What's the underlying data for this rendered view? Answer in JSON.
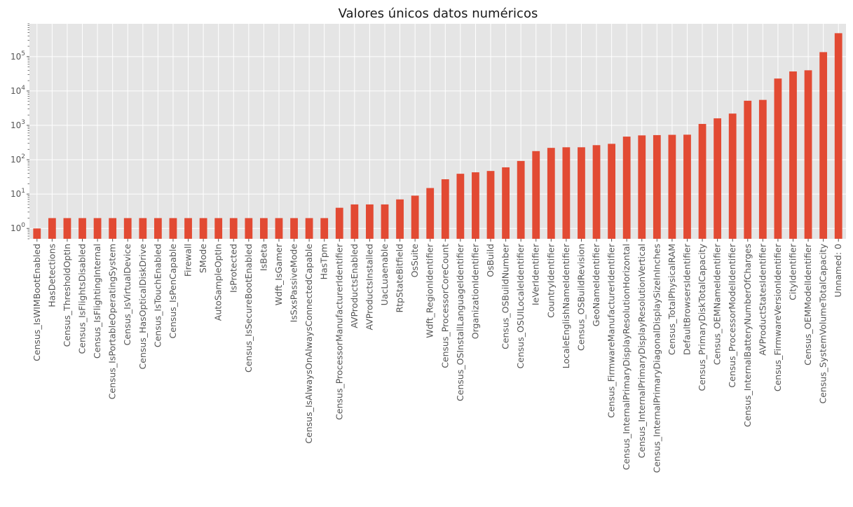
{
  "chart_data": {
    "type": "bar",
    "title": "Valores únicos datos numéricos",
    "xlabel": "",
    "ylabel": "",
    "yscale": "log",
    "ylim": [
      0.5,
      900000
    ],
    "grid": true,
    "legend": "none",
    "colors": {
      "bar": "#E24A33",
      "plot_bg": "#E5E5E5",
      "grid": "#FFFFFF",
      "tick_text": "#555555"
    },
    "yticks": [
      {
        "value": 1,
        "base": "10",
        "exp": "0"
      },
      {
        "value": 10,
        "base": "10",
        "exp": "1"
      },
      {
        "value": 100,
        "base": "10",
        "exp": "2"
      },
      {
        "value": 1000,
        "base": "10",
        "exp": "3"
      },
      {
        "value": 10000,
        "base": "10",
        "exp": "4"
      },
      {
        "value": 100000,
        "base": "10",
        "exp": "5"
      }
    ],
    "categories": [
      "Census_IsWIMBootEnabled",
      "HasDetections",
      "Census_ThresholdOptIn",
      "Census_IsFlightsDisabled",
      "Census_IsFlightingInternal",
      "Census_IsPortableOperatingSystem",
      "Census_IsVirtualDevice",
      "Census_HasOpticalDiskDrive",
      "Census_IsTouchEnabled",
      "Census_IsPenCapable",
      "Firewall",
      "SMode",
      "AutoSampleOptIn",
      "IsProtected",
      "Census_IsSecureBootEnabled",
      "IsBeta",
      "Wdft_IsGamer",
      "IsSxsPassiveMode",
      "Census_IsAlwaysOnAlwaysConnectedCapable",
      "HasTpm",
      "Census_ProcessorManufacturerIdentifier",
      "AVProductsEnabled",
      "AVProductsInstalled",
      "UacLuaenable",
      "RtpStateBitfield",
      "OsSuite",
      "Wdft_RegionIdentifier",
      "Census_ProcessorCoreCount",
      "Census_OSInstallLanguageIdentifier",
      "OrganizationIdentifier",
      "OsBuild",
      "Census_OSBuildNumber",
      "Census_OSUILocaleIdentifier",
      "IeVerIdentifier",
      "CountryIdentifier",
      "LocaleEnglishNameIdentifier",
      "Census_OSBuildRevision",
      "GeoNameIdentifier",
      "Census_FirmwareManufacturerIdentifier",
      "Census_InternalPrimaryDisplayResolutionHorizontal",
      "Census_InternalPrimaryDisplayResolutionVertical",
      "Census_InternalPrimaryDiagonalDisplaySizeInInches",
      "Census_TotalPhysicalRAM",
      "DefaultBrowsersIdentifier",
      "Census_PrimaryDiskTotalCapacity",
      "Census_OEMNameIdentifier",
      "Census_ProcessorModelIdentifier",
      "Census_InternalBatteryNumberOfCharges",
      "AVProductStatesIdentifier",
      "Census_FirmwareVersionIdentifier",
      "CityIdentifier",
      "Census_OEMModelIdentifier",
      "Census_SystemVolumeTotalCapacity",
      "Unnamed: 0"
    ],
    "values": [
      1,
      2,
      2,
      2,
      2,
      2,
      2,
      2,
      2,
      2,
      2,
      2,
      2,
      2,
      2,
      2,
      2,
      2,
      2,
      2,
      4,
      5,
      5,
      5,
      7,
      9,
      15,
      27,
      39,
      43,
      47,
      60,
      92,
      178,
      221,
      230,
      230,
      265,
      290,
      470,
      510,
      520,
      530,
      535,
      1100,
      1600,
      2200,
      5200,
      5500,
      23000,
      37000,
      40000,
      135000,
      480000
    ]
  }
}
